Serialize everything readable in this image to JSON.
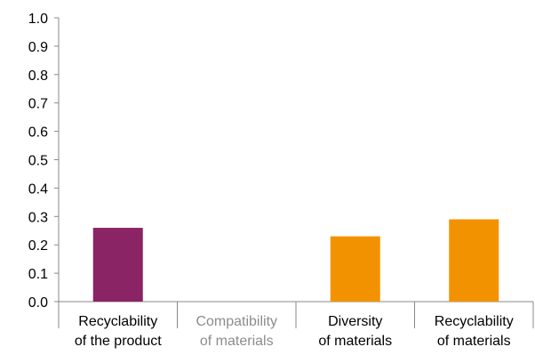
{
  "chart_data": {
    "type": "bar",
    "categories": [
      [
        "Recyclability",
        "of the product"
      ],
      [
        "Compatibility",
        "of materials"
      ],
      [
        "Diversity",
        "of materials"
      ],
      [
        "Recyclability",
        "of materials"
      ]
    ],
    "values": [
      0.26,
      null,
      0.23,
      0.29
    ],
    "bar_colors": [
      "#8B2464",
      "#F39200",
      "#F39200",
      "#F39200"
    ],
    "category_label_colors": [
      "#000000",
      "#8C8C8C",
      "#000000",
      "#000000"
    ],
    "ylim": [
      0,
      1.0
    ],
    "yticks": [
      "0.0",
      "0.1",
      "0.2",
      "0.3",
      "0.4",
      "0.5",
      "0.6",
      "0.7",
      "0.8",
      "0.9",
      "1.0"
    ],
    "title": "",
    "xlabel": "",
    "ylabel": "",
    "grid": "y-ticks only, no gridlines",
    "legend": "none"
  }
}
